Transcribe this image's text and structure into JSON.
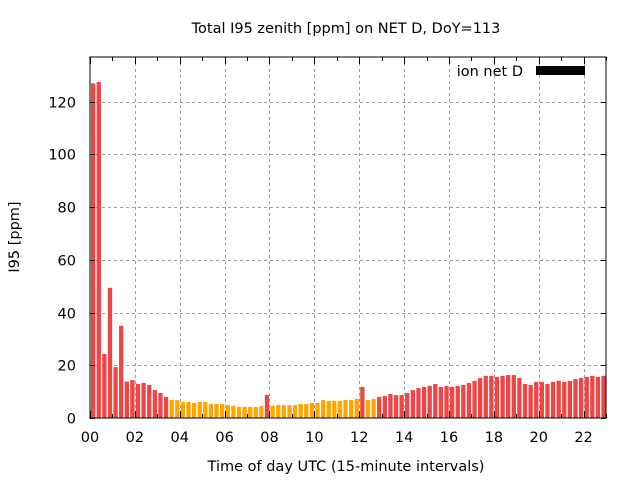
{
  "chart_data": {
    "type": "bar",
    "title": "Total I95 zenith [ppm] on NET D, DoY=113",
    "xlabel": "Time of day UTC (15-minute intervals)",
    "ylabel": "I95 [ppm]",
    "ylim": [
      0,
      137
    ],
    "xlim_hours": [
      0,
      23
    ],
    "grid": true,
    "legend": {
      "label": "ion net D",
      "color": "#000000",
      "placement": "top-right"
    },
    "x_ticks": [
      "00",
      "02",
      "04",
      "06",
      "08",
      "10",
      "12",
      "14",
      "16",
      "18",
      "20",
      "22"
    ],
    "y_ticks": [
      "0",
      "20",
      "40",
      "60",
      "80",
      "100",
      "120"
    ],
    "y_tick_values": [
      0,
      20,
      40,
      60,
      80,
      100,
      120
    ],
    "interval_minutes": 15,
    "colors": {
      "high": "#ee4545",
      "low": "#ffa500",
      "grid": "#a0a0a0",
      "axis": "#000000"
    },
    "series": [
      {
        "name": "ion net D",
        "values": [
          127,
          127.5,
          24.3,
          49.4,
          19.3,
          35,
          13.8,
          14.4,
          12.9,
          13.3,
          12.5,
          10.6,
          9.5,
          8.0,
          6.8,
          6.8,
          6.1,
          6.1,
          5.7,
          6.1,
          6.1,
          5.3,
          5.3,
          5.3,
          4.9,
          4.6,
          4.2,
          4.2,
          4.2,
          4.2,
          4.6,
          8.8,
          4.6,
          4.9,
          4.9,
          4.9,
          4.9,
          5.3,
          5.3,
          5.7,
          5.7,
          6.8,
          6.5,
          6.5,
          6.5,
          6.8,
          6.8,
          7.2,
          11.8,
          6.8,
          7.2,
          8.0,
          8.4,
          9.1,
          8.7,
          8.7,
          9.5,
          10.6,
          11.4,
          11.8,
          12.2,
          12.9,
          11.8,
          12.2,
          11.8,
          12.2,
          12.5,
          13.3,
          14.1,
          15.2,
          16.0,
          16.0,
          15.6,
          16.0,
          16.3,
          16.3,
          15.2,
          12.9,
          12.5,
          13.7,
          13.7,
          12.9,
          13.7,
          14.1,
          13.7,
          14.1,
          14.8,
          15.2,
          15.6,
          16.0,
          15.6,
          16.0
        ],
        "category": [
          "high",
          "high",
          "high",
          "high",
          "high",
          "high",
          "high",
          "high",
          "high",
          "high",
          "high",
          "high",
          "high",
          "high",
          "low",
          "low",
          "low",
          "low",
          "low",
          "low",
          "low",
          "low",
          "low",
          "low",
          "low",
          "low",
          "low",
          "low",
          "low",
          "low",
          "low",
          "high",
          "low",
          "low",
          "low",
          "low",
          "low",
          "low",
          "low",
          "low",
          "low",
          "low",
          "low",
          "low",
          "low",
          "low",
          "low",
          "low",
          "high",
          "low",
          "low",
          "high",
          "high",
          "high",
          "high",
          "high",
          "high",
          "high",
          "high",
          "high",
          "high",
          "high",
          "high",
          "high",
          "high",
          "high",
          "high",
          "high",
          "high",
          "high",
          "high",
          "high",
          "high",
          "high",
          "high",
          "high",
          "high",
          "high",
          "high",
          "high",
          "high",
          "high",
          "high",
          "high",
          "high",
          "high",
          "high",
          "high",
          "high",
          "high",
          "high",
          "high"
        ]
      }
    ]
  }
}
